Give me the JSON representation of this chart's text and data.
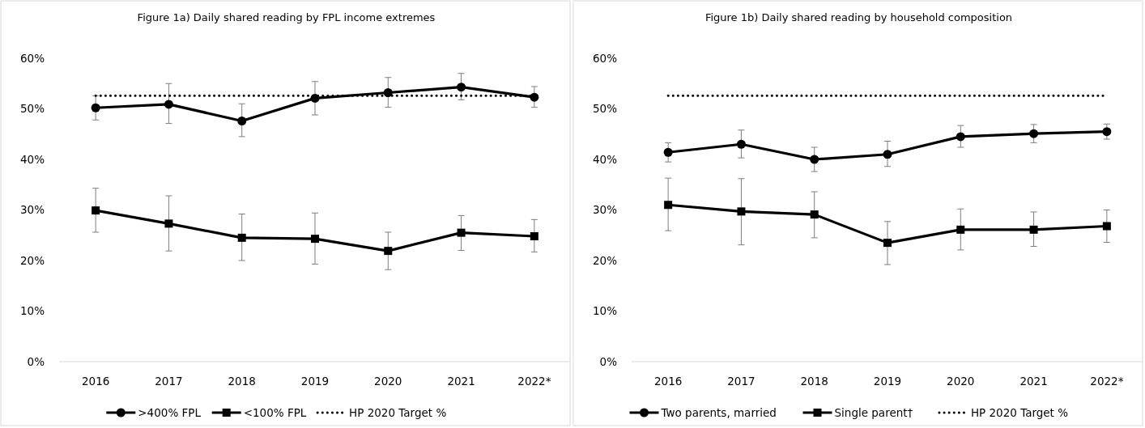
{
  "chart_data": [
    {
      "type": "line",
      "title": "Figure 1a) Daily shared reading by FPL income extremes",
      "categories": [
        "2016",
        "2017",
        "2018",
        "2019",
        "2020",
        "2021",
        "2022*"
      ],
      "ylim": [
        0,
        60
      ],
      "yticks": [
        {
          "value": 0,
          "label": "0%"
        },
        {
          "value": 10,
          "label": "10%"
        },
        {
          "value": 20,
          "label": "20%"
        },
        {
          "value": 30,
          "label": "30%"
        },
        {
          "value": 40,
          "label": "40%"
        },
        {
          "value": 50,
          "label": "50%"
        },
        {
          "value": 60,
          "label": "60%"
        }
      ],
      "grid": false,
      "legend": "bottom",
      "series": [
        {
          "name": ">400% FPL",
          "color": "#000000",
          "marker": "circle",
          "line_style": "solid",
          "values": [
            50.2,
            50.9,
            47.6,
            52.1,
            53.2,
            54.3,
            52.3
          ],
          "errors": [
            [
              47.8,
              52.6
            ],
            [
              47.1,
              55.0
            ],
            [
              44.5,
              51.0
            ],
            [
              48.8,
              55.4
            ],
            [
              50.3,
              56.2
            ],
            [
              51.8,
              57.0
            ],
            [
              50.3,
              54.4
            ]
          ]
        },
        {
          "name": "<100% FPL",
          "color": "#000000",
          "marker": "square",
          "line_style": "solid",
          "values": [
            29.9,
            27.3,
            24.5,
            24.3,
            21.9,
            25.5,
            24.8
          ],
          "errors": [
            [
              25.6,
              34.3
            ],
            [
              21.9,
              32.8
            ],
            [
              20.0,
              29.2
            ],
            [
              19.3,
              29.4
            ],
            [
              18.2,
              25.6
            ],
            [
              22.0,
              28.9
            ],
            [
              21.7,
              28.1
            ]
          ]
        },
        {
          "name": "HP 2020 Target %",
          "color": "#000000",
          "marker": "none",
          "line_style": "dotted",
          "values": [
            52.6,
            52.6,
            52.6,
            52.6,
            52.6,
            52.6,
            52.6
          ]
        }
      ]
    },
    {
      "type": "line",
      "title": "Figure 1b) Daily shared reading by household composition",
      "categories": [
        "2016",
        "2017",
        "2018",
        "2019",
        "2020",
        "2021",
        "2022*"
      ],
      "ylim": [
        0,
        60
      ],
      "yticks": [
        {
          "value": 0,
          "label": "0%"
        },
        {
          "value": 10,
          "label": "10%"
        },
        {
          "value": 20,
          "label": "20%"
        },
        {
          "value": 30,
          "label": "30%"
        },
        {
          "value": 40,
          "label": "40%"
        },
        {
          "value": 50,
          "label": "50%"
        },
        {
          "value": 60,
          "label": "60%"
        }
      ],
      "grid": false,
      "legend": "bottom",
      "series": [
        {
          "name": "Two parents, married",
          "color": "#000000",
          "marker": "circle",
          "line_style": "solid",
          "values": [
            41.4,
            43.0,
            40.0,
            41.0,
            44.5,
            45.1,
            45.5
          ],
          "errors": [
            [
              39.5,
              43.3
            ],
            [
              40.3,
              45.8
            ],
            [
              37.6,
              42.4
            ],
            [
              38.6,
              43.6
            ],
            [
              42.4,
              46.7
            ],
            [
              43.3,
              46.9
            ],
            [
              44.0,
              47.0
            ]
          ]
        },
        {
          "name": "Single parent†",
          "color": "#000000",
          "marker": "square",
          "line_style": "solid",
          "values": [
            31.0,
            29.7,
            29.1,
            23.5,
            26.1,
            26.1,
            26.8
          ],
          "errors": [
            [
              25.9,
              36.3
            ],
            [
              23.1,
              36.2
            ],
            [
              24.5,
              33.6
            ],
            [
              19.2,
              27.7
            ],
            [
              22.1,
              30.2
            ],
            [
              22.8,
              29.6
            ],
            [
              23.6,
              30.0
            ]
          ]
        },
        {
          "name": "HP 2020 Target %",
          "color": "#000000",
          "marker": "none",
          "line_style": "dotted",
          "values": [
            52.6,
            52.6,
            52.6,
            52.6,
            52.6,
            52.6,
            52.6
          ]
        }
      ]
    }
  ]
}
